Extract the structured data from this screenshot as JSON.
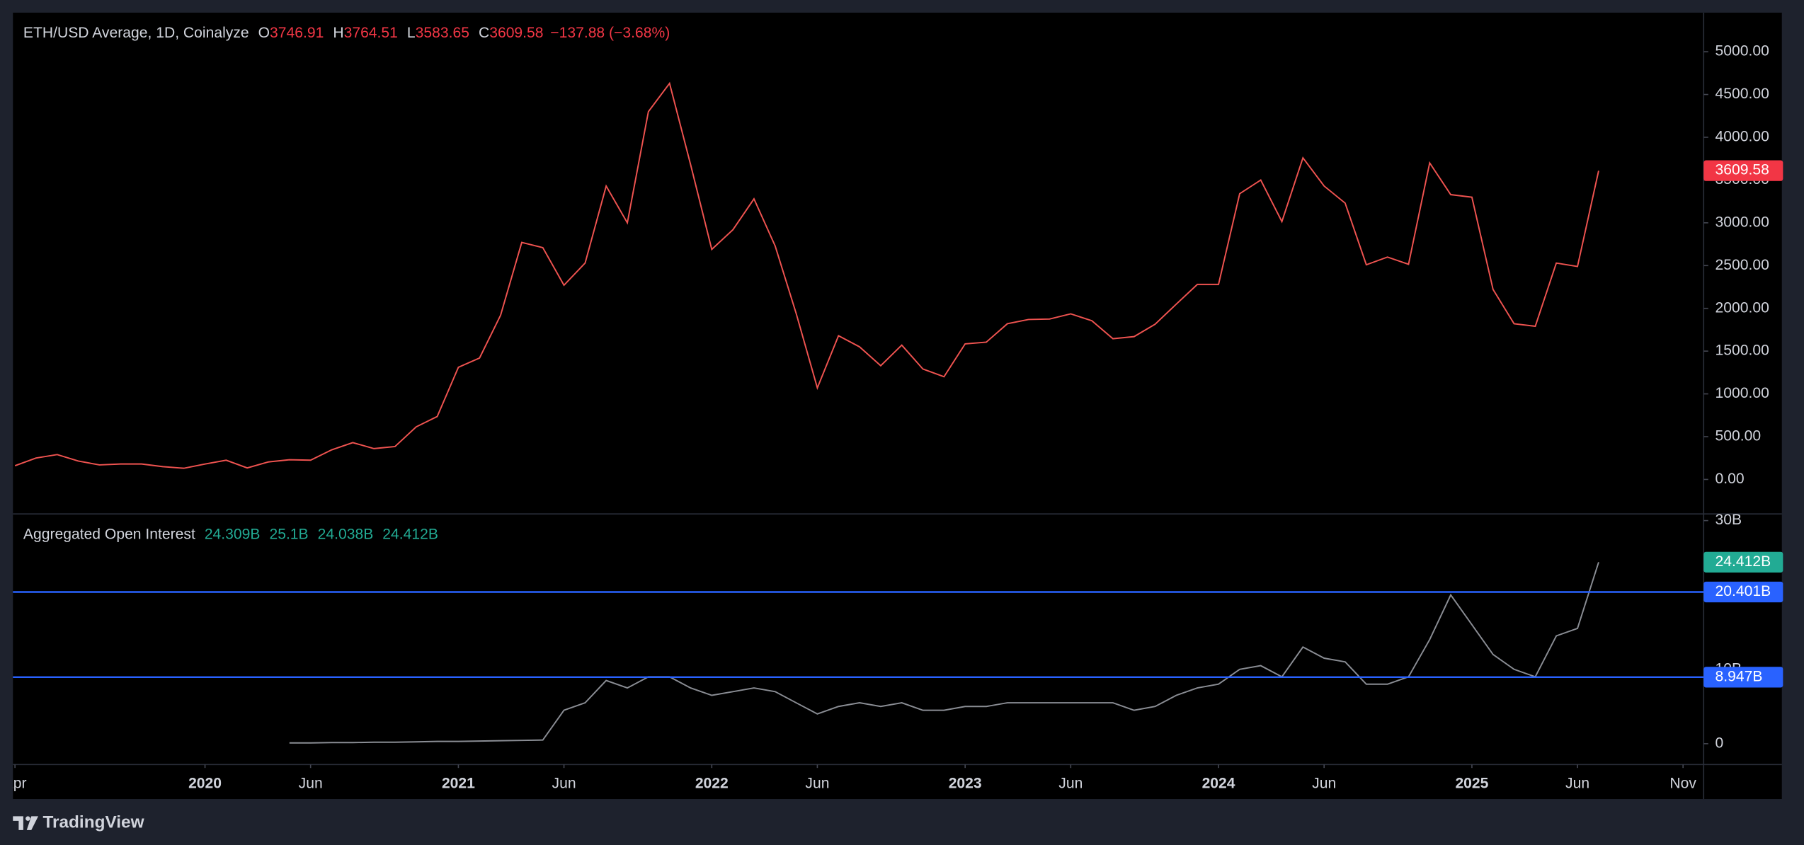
{
  "chart_data": [
    {
      "type": "line",
      "title": "ETH/USD Average, 1D, Coinalyze",
      "ohlc": [
        {
          "key": "O",
          "value": "3746.91"
        },
        {
          "key": "H",
          "value": "3764.51"
        },
        {
          "key": "L",
          "value": "3583.65"
        },
        {
          "key": "C",
          "value": "3609.58"
        }
      ],
      "change": "−137.88 (−3.68%)",
      "x": [
        "2019-04",
        "2019-05",
        "2019-06",
        "2019-07",
        "2019-08",
        "2019-09",
        "2019-10",
        "2019-11",
        "2019-12",
        "2020-01",
        "2020-02",
        "2020-03",
        "2020-04",
        "2020-05",
        "2020-06",
        "2020-07",
        "2020-08",
        "2020-09",
        "2020-10",
        "2020-11",
        "2020-12",
        "2021-01",
        "2021-02",
        "2021-03",
        "2021-04",
        "2021-05",
        "2021-06",
        "2021-07",
        "2021-08",
        "2021-09",
        "2021-10",
        "2021-11",
        "2021-12",
        "2022-01",
        "2022-02",
        "2022-03",
        "2022-04",
        "2022-05",
        "2022-06",
        "2022-07",
        "2022-08",
        "2022-09",
        "2022-10",
        "2022-11",
        "2022-12",
        "2023-01",
        "2023-02",
        "2023-03",
        "2023-04",
        "2023-05",
        "2023-06",
        "2023-07",
        "2023-08",
        "2023-09",
        "2023-10",
        "2023-11",
        "2023-12",
        "2024-01",
        "2024-02",
        "2024-03",
        "2024-04",
        "2024-05",
        "2024-06",
        "2024-07",
        "2024-08",
        "2024-09",
        "2024-10",
        "2024-11",
        "2024-12",
        "2025-01",
        "2025-02",
        "2025-03",
        "2025-04",
        "2025-05",
        "2025-06",
        "2025-07"
      ],
      "series": [
        {
          "color": "#ef5350",
          "values": [
            160,
            250,
            290,
            215,
            170,
            180,
            180,
            150,
            130,
            180,
            225,
            135,
            205,
            230,
            225,
            345,
            430,
            360,
            385,
            615,
            735,
            1310,
            1420,
            1920,
            2770,
            2710,
            2270,
            2530,
            3430,
            3000,
            4300,
            4630,
            3680,
            2690,
            2920,
            3280,
            2730,
            1940,
            1070,
            1680,
            1550,
            1330,
            1570,
            1290,
            1200,
            1585,
            1605,
            1820,
            1870,
            1875,
            1935,
            1855,
            1645,
            1670,
            1815,
            2050,
            2280,
            2280,
            3340,
            3500,
            3015,
            3760,
            3430,
            3230,
            2510,
            2600,
            2515,
            3700,
            3330,
            3300,
            2220,
            1820,
            1790,
            2530,
            2490,
            3609.58
          ]
        }
      ],
      "last_color": "#f23645",
      "ylim": [
        -403,
        5457
      ],
      "yticks": [
        {
          "value": 0,
          "label": "0.00"
        },
        {
          "value": 500,
          "label": "500.00"
        },
        {
          "value": 1000,
          "label": "1000.00"
        },
        {
          "value": 1500,
          "label": "1500.00"
        },
        {
          "value": 2000,
          "label": "2000.00"
        },
        {
          "value": 2500,
          "label": "2500.00"
        },
        {
          "value": 3000,
          "label": "3000.00"
        },
        {
          "value": 3500,
          "label": "3500.00"
        },
        {
          "value": 4000,
          "label": "4000.00"
        },
        {
          "value": 4500,
          "label": "4500.00"
        },
        {
          "value": 5000,
          "label": "5000.00"
        }
      ]
    },
    {
      "type": "line",
      "title": "Aggregated Open Interest",
      "stats": [
        "24.309B",
        "25.1B",
        "24.038B",
        "24.412B"
      ],
      "x": [
        "2019-04",
        "2019-05",
        "2019-06",
        "2019-07",
        "2019-08",
        "2019-09",
        "2019-10",
        "2019-11",
        "2019-12",
        "2020-01",
        "2020-02",
        "2020-03",
        "2020-04",
        "2020-05",
        "2020-06",
        "2020-07",
        "2020-08",
        "2020-09",
        "2020-10",
        "2020-11",
        "2020-12",
        "2021-01",
        "2021-02",
        "2021-03",
        "2021-04",
        "2021-05",
        "2021-06",
        "2021-07",
        "2021-08",
        "2021-09",
        "2021-10",
        "2021-11",
        "2021-12",
        "2022-01",
        "2022-02",
        "2022-03",
        "2022-04",
        "2022-05",
        "2022-06",
        "2022-07",
        "2022-08",
        "2022-09",
        "2022-10",
        "2022-11",
        "2022-12",
        "2023-01",
        "2023-02",
        "2023-03",
        "2023-04",
        "2023-05",
        "2023-06",
        "2023-07",
        "2023-08",
        "2023-09",
        "2023-10",
        "2023-11",
        "2023-12",
        "2024-01",
        "2024-02",
        "2024-03",
        "2024-04",
        "2024-05",
        "2024-06",
        "2024-07",
        "2024-08",
        "2024-09",
        "2024-10",
        "2024-11",
        "2024-12",
        "2025-01",
        "2025-02",
        "2025-03",
        "2025-04",
        "2025-05",
        "2025-06",
        "2025-07"
      ],
      "series": [
        {
          "color": "#8a8d94",
          "values": [
            null,
            null,
            null,
            null,
            null,
            null,
            null,
            null,
            null,
            null,
            null,
            null,
            null,
            0.1,
            0.1,
            0.15,
            0.15,
            0.2,
            0.2,
            0.25,
            0.3,
            0.3,
            0.35,
            0.4,
            0.45,
            0.5,
            4.5,
            5.5,
            8.5,
            7.5,
            9,
            9,
            7.5,
            6.5,
            7,
            7.5,
            7,
            5.5,
            4,
            5,
            5.5,
            5,
            5.5,
            4.5,
            4.5,
            5,
            5,
            5.5,
            5.5,
            5.5,
            5.5,
            5.5,
            5.5,
            4.5,
            5,
            6.5,
            7.5,
            8,
            10,
            10.5,
            9,
            13,
            11.5,
            11,
            8,
            8,
            9,
            14,
            20,
            16,
            12,
            10,
            9,
            14.5,
            15.5,
            24.412
          ]
        }
      ],
      "last_label": "24.412B",
      "last_color": "#22ab94",
      "hlines": [
        {
          "value": 20.401,
          "label": "20.401B"
        },
        {
          "value": 8.947,
          "label": "8.947B"
        }
      ],
      "hline_color": "#2962ff",
      "ylim": [
        -2.8,
        30.9
      ],
      "yticks": [
        0,
        {
          "value": 10,
          "label": "10B"
        },
        {
          "value": 30,
          "label": "30B"
        }
      ],
      "xticks": [
        {
          "value": "2019-04",
          "label": "Apr"
        },
        {
          "value": "2020-01",
          "label": "2020"
        },
        {
          "value": "2020-06",
          "label": "Jun"
        },
        {
          "value": "2021-01",
          "label": "2021"
        },
        {
          "value": "2021-06",
          "label": "Jun"
        },
        {
          "value": "2022-01",
          "label": "2022"
        },
        {
          "value": "2022-06",
          "label": "Jun"
        },
        {
          "value": "2023-01",
          "label": "2023"
        },
        {
          "value": "2023-06",
          "label": "Jun"
        },
        {
          "value": "2024-01",
          "label": "2024"
        },
        {
          "value": "2024-06",
          "label": "Jun"
        },
        {
          "value": "2025-01",
          "label": "2025"
        },
        {
          "value": "2025-06",
          "label": "Jun"
        },
        {
          "value": "2025-11",
          "label": "Nov"
        }
      ]
    }
  ],
  "footer": {
    "brand": "TradingView"
  }
}
